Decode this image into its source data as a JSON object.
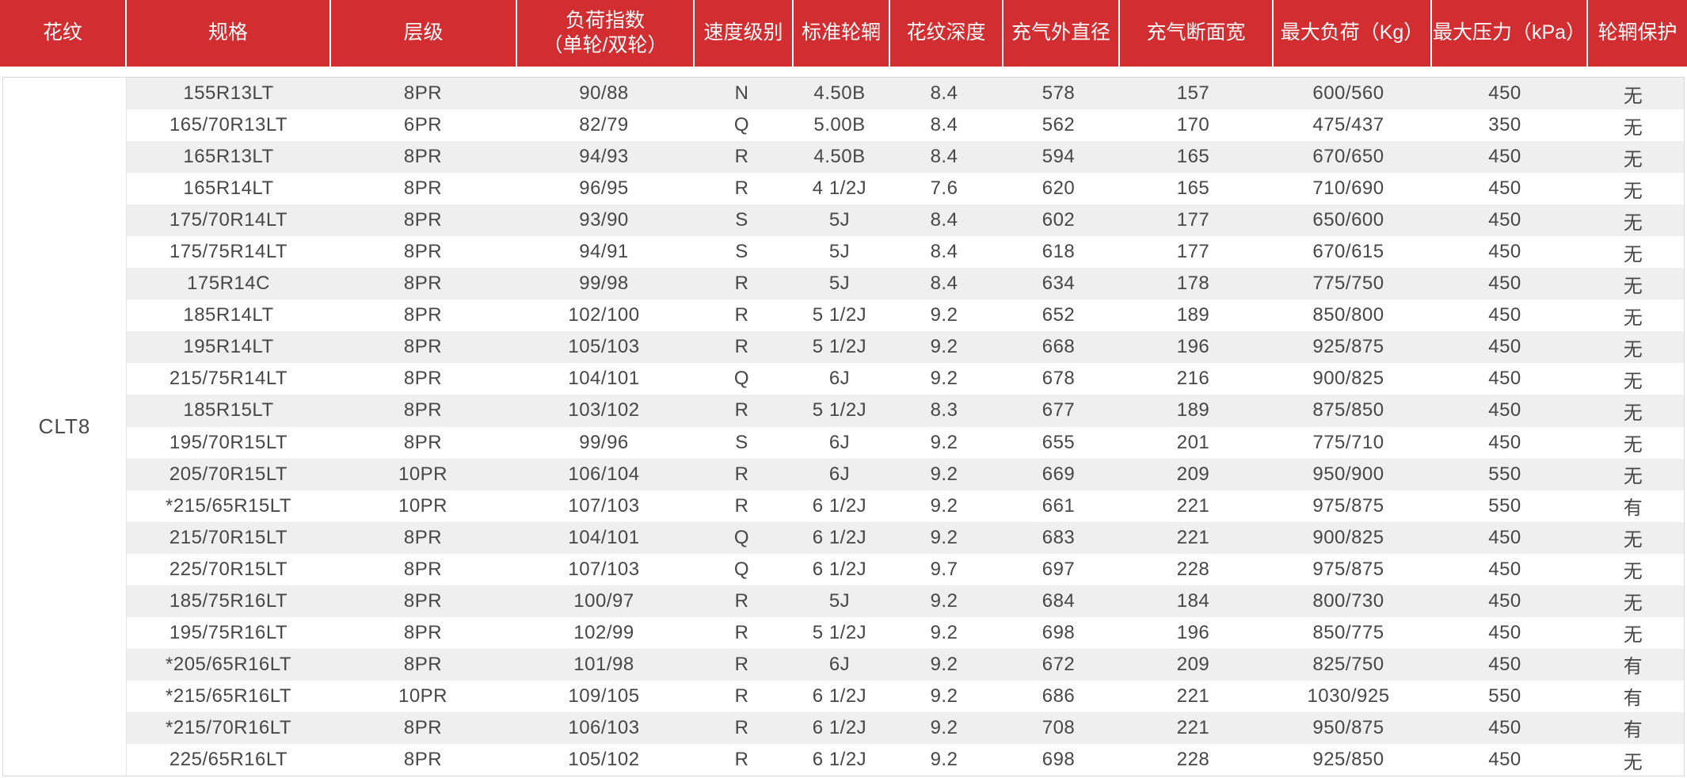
{
  "pattern_label": "CLT8",
  "colors": {
    "header_bg": "#d22d30",
    "header_text": "#ffffff",
    "stripe": "#efefef",
    "body_text": "#474747",
    "border": "#d9d9d9"
  },
  "table": {
    "headers": [
      {
        "key": "pattern",
        "label": "花纹"
      },
      {
        "key": "spec",
        "label": "规格"
      },
      {
        "key": "ply",
        "label": "层级"
      },
      {
        "key": "load_index",
        "label": "负荷指数",
        "label_line2": "（单轮/双轮）"
      },
      {
        "key": "speed",
        "label": "速度级别"
      },
      {
        "key": "rim",
        "label": "标准轮辋"
      },
      {
        "key": "depth",
        "label": "花纹深度"
      },
      {
        "key": "diameter",
        "label": "充气外直径"
      },
      {
        "key": "section_width",
        "label": "充气断面宽"
      },
      {
        "key": "max_load",
        "label": "最大负荷（Kg）"
      },
      {
        "key": "max_pressure",
        "label": "最大压力（kPa）"
      },
      {
        "key": "rim_protection",
        "label": "轮辋保护"
      }
    ],
    "column_keys": [
      "spec",
      "ply",
      "load_index",
      "speed",
      "rim",
      "depth",
      "diameter",
      "section_width",
      "max_load",
      "max_pressure",
      "rim_protection"
    ],
    "rows": [
      [
        "155R13LT",
        "8PR",
        "90/88",
        "N",
        "4.50B",
        "8.4",
        "578",
        "157",
        "600/560",
        "450",
        "无"
      ],
      [
        "165/70R13LT",
        "6PR",
        "82/79",
        "Q",
        "5.00B",
        "8.4",
        "562",
        "170",
        "475/437",
        "350",
        "无"
      ],
      [
        "165R13LT",
        "8PR",
        "94/93",
        "R",
        "4.50B",
        "8.4",
        "594",
        "165",
        "670/650",
        "450",
        "无"
      ],
      [
        "165R14LT",
        "8PR",
        "96/95",
        "R",
        "4 1/2J",
        "7.6",
        "620",
        "165",
        "710/690",
        "450",
        "无"
      ],
      [
        "175/70R14LT",
        "8PR",
        "93/90",
        "S",
        "5J",
        "8.4",
        "602",
        "177",
        "650/600",
        "450",
        "无"
      ],
      [
        "175/75R14LT",
        "8PR",
        "94/91",
        "S",
        "5J",
        "8.4",
        "618",
        "177",
        "670/615",
        "450",
        "无"
      ],
      [
        "175R14C",
        "8PR",
        "99/98",
        "R",
        "5J",
        "8.4",
        "634",
        "178",
        "775/750",
        "450",
        "无"
      ],
      [
        "185R14LT",
        "8PR",
        "102/100",
        "R",
        "5 1/2J",
        "9.2",
        "652",
        "189",
        "850/800",
        "450",
        "无"
      ],
      [
        "195R14LT",
        "8PR",
        "105/103",
        "R",
        "5 1/2J",
        "9.2",
        "668",
        "196",
        "925/875",
        "450",
        "无"
      ],
      [
        "215/75R14LT",
        "8PR",
        "104/101",
        "Q",
        "6J",
        "9.2",
        "678",
        "216",
        "900/825",
        "450",
        "无"
      ],
      [
        "185R15LT",
        "8PR",
        "103/102",
        "R",
        "5 1/2J",
        "8.3",
        "677",
        "189",
        "875/850",
        "450",
        "无"
      ],
      [
        "195/70R15LT",
        "8PR",
        "99/96",
        "S",
        "6J",
        "9.2",
        "655",
        "201",
        "775/710",
        "450",
        "无"
      ],
      [
        "205/70R15LT",
        "10PR",
        "106/104",
        "R",
        "6J",
        "9.2",
        "669",
        "209",
        "950/900",
        "550",
        "无"
      ],
      [
        "*215/65R15LT",
        "10PR",
        "107/103",
        "R",
        "6 1/2J",
        "9.2",
        "661",
        "221",
        "975/875",
        "550",
        "有"
      ],
      [
        "215/70R15LT",
        "8PR",
        "104/101",
        "Q",
        "6 1/2J",
        "9.2",
        "683",
        "221",
        "900/825",
        "450",
        "无"
      ],
      [
        "225/70R15LT",
        "8PR",
        "107/103",
        "Q",
        "6 1/2J",
        "9.7",
        "697",
        "228",
        "975/875",
        "450",
        "无"
      ],
      [
        "185/75R16LT",
        "8PR",
        "100/97",
        "R",
        "5J",
        "9.2",
        "684",
        "184",
        "800/730",
        "450",
        "无"
      ],
      [
        "195/75R16LT",
        "8PR",
        "102/99",
        "R",
        "5 1/2J",
        "9.2",
        "698",
        "196",
        "850/775",
        "450",
        "无"
      ],
      [
        "*205/65R16LT",
        "8PR",
        "101/98",
        "R",
        "6J",
        "9.2",
        "672",
        "209",
        "825/750",
        "450",
        "有"
      ],
      [
        "*215/65R16LT",
        "10PR",
        "109/105",
        "R",
        "6 1/2J",
        "9.2",
        "686",
        "221",
        "1030/925",
        "550",
        "有"
      ],
      [
        "*215/70R16LT",
        "8PR",
        "106/103",
        "R",
        "6 1/2J",
        "9.2",
        "708",
        "221",
        "950/875",
        "450",
        "有"
      ],
      [
        "225/65R16LT",
        "8PR",
        "105/102",
        "R",
        "6 1/2J",
        "9.2",
        "698",
        "228",
        "925/850",
        "450",
        "无"
      ]
    ]
  }
}
